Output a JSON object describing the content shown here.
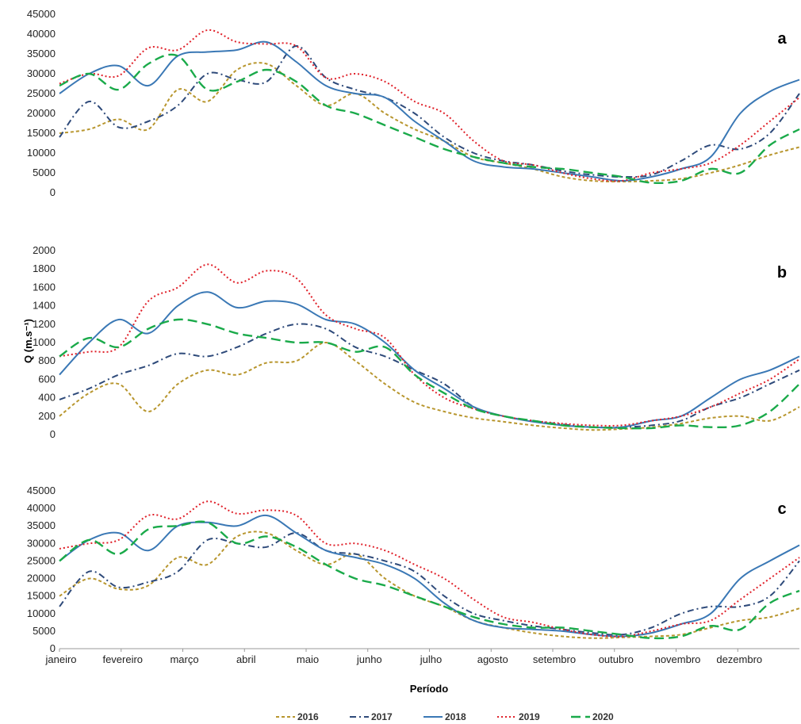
{
  "chart_data": {
    "type": "line",
    "x_axis_label": "Período",
    "y_axis_label": "Q (m.s⁻¹)",
    "months": [
      "janeiro",
      "fevereiro",
      "março",
      "abril",
      "maio",
      "junho",
      "julho",
      "agosto",
      "setembro",
      "outubro",
      "novembro",
      "dezembro"
    ],
    "legend": [
      {
        "name": "2016",
        "color": "#b8962e",
        "dash": "4,3",
        "width": 2
      },
      {
        "name": "2017",
        "color": "#2e4a7a",
        "dash": "8,4,2,4",
        "width": 2
      },
      {
        "name": "2018",
        "color": "#3a78b5",
        "dash": "",
        "width": 2
      },
      {
        "name": "2019",
        "color": "#e0212a",
        "dash": "2,3",
        "width": 2
      },
      {
        "name": "2020",
        "color": "#1aaa4a",
        "dash": "12,6",
        "width": 2.4
      }
    ],
    "panels": [
      {
        "letter": "a",
        "ylim": [
          0,
          45000
        ],
        "yticks": [
          0,
          5000,
          10000,
          15000,
          20000,
          25000,
          30000,
          35000,
          40000,
          45000
        ],
        "series": {
          "2016": [
            15000,
            16000,
            18500,
            16000,
            26000,
            23000,
            31000,
            32500,
            27000,
            22000,
            25000,
            20000,
            16000,
            13000,
            9000,
            7500,
            6000,
            4000,
            3000,
            2800,
            3000,
            3500,
            5000,
            7000,
            9500,
            11500
          ],
          "2017": [
            14000,
            23000,
            16500,
            18000,
            22000,
            30000,
            28500,
            28000,
            37000,
            29000,
            26000,
            24000,
            20000,
            14000,
            10000,
            8000,
            7000,
            5500,
            4500,
            4000,
            4500,
            8000,
            12000,
            11000,
            15000,
            25000
          ],
          "2018": [
            25000,
            30000,
            32000,
            27000,
            34500,
            35500,
            36000,
            38000,
            33000,
            27000,
            25000,
            24000,
            18000,
            13000,
            8000,
            6500,
            6000,
            5000,
            4000,
            3000,
            4000,
            6000,
            9000,
            20000,
            25500,
            28500
          ],
          "2019": [
            27500,
            30000,
            29500,
            36500,
            36000,
            41000,
            38000,
            37500,
            37000,
            29000,
            30000,
            28000,
            23000,
            20000,
            13000,
            8000,
            7000,
            5000,
            3500,
            3000,
            5000,
            6000,
            7500,
            12000,
            18000,
            24000
          ],
          "2020": [
            27000,
            30000,
            26000,
            32500,
            34500,
            26000,
            28000,
            31000,
            28000,
            22000,
            20000,
            17000,
            14000,
            11000,
            9000,
            7500,
            6500,
            6000,
            5000,
            4000,
            2500,
            3000,
            6000,
            5000,
            12000,
            16000
          ]
        }
      },
      {
        "letter": "b",
        "ylim": [
          0,
          2000
        ],
        "yticks": [
          0,
          200,
          400,
          600,
          800,
          1000,
          1200,
          1400,
          1600,
          1800,
          2000
        ],
        "series": {
          "2016": [
            200,
            450,
            550,
            250,
            550,
            700,
            650,
            780,
            800,
            1000,
            800,
            550,
            350,
            250,
            180,
            140,
            100,
            70,
            50,
            60,
            80,
            120,
            180,
            200,
            150,
            300
          ],
          "2017": [
            380,
            500,
            650,
            750,
            880,
            850,
            950,
            1100,
            1200,
            1150,
            950,
            850,
            700,
            550,
            300,
            200,
            150,
            110,
            80,
            80,
            100,
            150,
            300,
            400,
            550,
            700
          ],
          "2018": [
            650,
            1000,
            1250,
            1100,
            1400,
            1550,
            1380,
            1450,
            1420,
            1250,
            1200,
            1000,
            700,
            500,
            300,
            200,
            140,
            100,
            80,
            80,
            150,
            200,
            400,
            600,
            700,
            850
          ],
          "2019": [
            850,
            900,
            950,
            1450,
            1600,
            1850,
            1650,
            1780,
            1700,
            1300,
            1150,
            1050,
            650,
            400,
            280,
            200,
            150,
            120,
            100,
            100,
            150,
            200,
            300,
            450,
            600,
            820
          ],
          "2020": [
            850,
            1050,
            950,
            1150,
            1250,
            1200,
            1100,
            1050,
            1000,
            1000,
            900,
            950,
            650,
            450,
            280,
            200,
            150,
            100,
            80,
            70,
            70,
            100,
            80,
            100,
            250,
            550
          ]
        }
      },
      {
        "letter": "c",
        "ylim": [
          0,
          45000
        ],
        "yticks": [
          0,
          5000,
          10000,
          15000,
          20000,
          25000,
          30000,
          35000,
          40000,
          45000
        ],
        "series": {
          "2016": [
            15000,
            20000,
            17000,
            18000,
            26000,
            24000,
            32000,
            33000,
            28000,
            24000,
            27000,
            20000,
            15000,
            12000,
            8000,
            6000,
            4500,
            3500,
            3000,
            3200,
            3500,
            4000,
            6000,
            8000,
            9000,
            11500
          ],
          "2017": [
            12000,
            22000,
            17500,
            19000,
            22000,
            31000,
            30000,
            29000,
            33000,
            28000,
            27000,
            25000,
            22000,
            15000,
            10000,
            8000,
            6500,
            5500,
            4500,
            4000,
            6000,
            10000,
            12000,
            12000,
            15000,
            25000
          ],
          "2018": [
            25000,
            31000,
            33000,
            28000,
            35000,
            36000,
            35000,
            38000,
            33000,
            28000,
            26000,
            24000,
            20000,
            13000,
            8000,
            6000,
            5500,
            5000,
            4000,
            3500,
            4500,
            7000,
            10000,
            20000,
            25000,
            29500
          ],
          "2019": [
            28500,
            30000,
            31000,
            38000,
            37000,
            42000,
            38500,
            39500,
            38000,
            30000,
            30000,
            28000,
            24000,
            20000,
            14000,
            9000,
            7500,
            5500,
            4000,
            3500,
            5000,
            7000,
            8000,
            14000,
            20000,
            26000
          ],
          "2020": [
            25000,
            31000,
            27000,
            34000,
            35000,
            36000,
            30000,
            32000,
            29000,
            24000,
            20000,
            18000,
            15000,
            12000,
            9000,
            7000,
            6000,
            6000,
            5000,
            4000,
            3000,
            3500,
            6500,
            5500,
            13000,
            16500
          ]
        }
      }
    ]
  }
}
